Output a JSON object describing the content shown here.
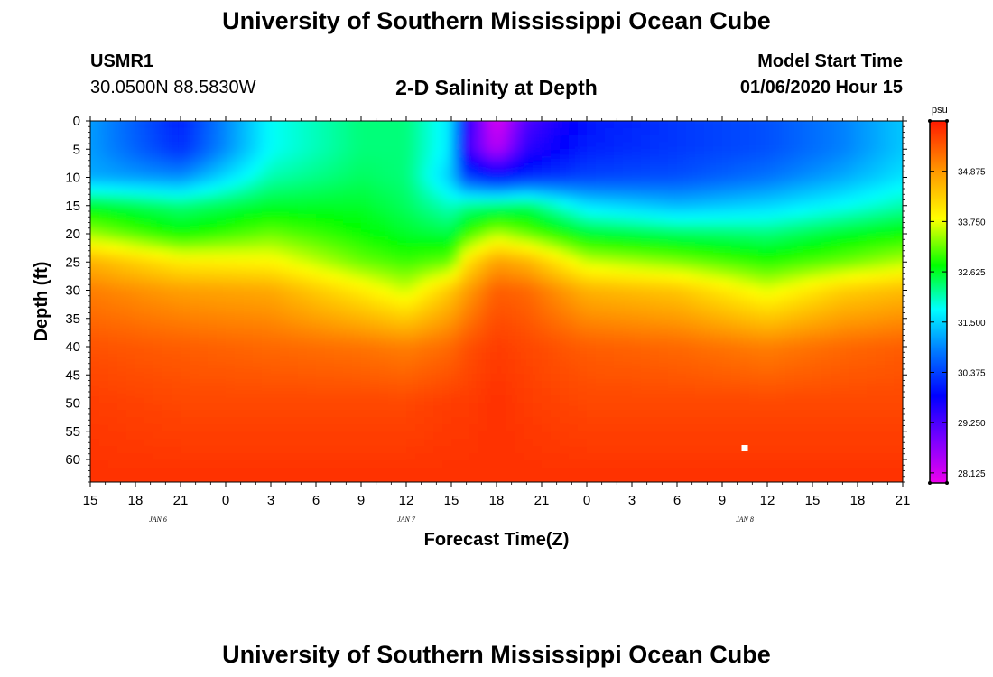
{
  "header": {
    "title": "University of Southern Mississippi Ocean Cube",
    "station_id": "USMR1",
    "station_coords": "30.0500N 88.5830W",
    "plot_title": "2-D Salinity at Depth",
    "model_start_label": "Model Start Time",
    "model_start_value": "01/06/2020 Hour 15"
  },
  "footer": {
    "title": "University of Southern Mississippi Ocean Cube"
  },
  "chart_data": {
    "type": "heatmap",
    "title": "2-D Salinity at Depth",
    "xlabel": "Forecast Time(Z)",
    "ylabel": "Depth (ft)",
    "x_tick_labels": [
      "15",
      "18",
      "21",
      "0",
      "3",
      "6",
      "9",
      "12",
      "15",
      "18",
      "21",
      "0",
      "3",
      "6",
      "9",
      "12",
      "15",
      "18",
      "21"
    ],
    "x_range_hours": [
      0,
      54
    ],
    "date_labels": [
      {
        "label": "JAN 6",
        "hour": 4.5
      },
      {
        "label": "JAN 7",
        "hour": 21
      },
      {
        "label": "JAN 8",
        "hour": 43.5
      }
    ],
    "y_ticks": [
      0,
      5,
      10,
      15,
      20,
      25,
      30,
      35,
      40,
      45,
      50,
      55,
      60
    ],
    "y_range": [
      0,
      64
    ],
    "colorbar": {
      "unit": "psu",
      "ticks": [
        "34.875",
        "33.750",
        "32.625",
        "31.500",
        "30.375",
        "29.250",
        "28.125"
      ],
      "min": 27.9,
      "max": 36.0
    },
    "depth_profiles": {
      "depths": [
        0,
        5,
        10,
        15,
        20,
        25,
        30,
        40,
        50,
        64
      ],
      "series": [
        {
          "hour": 0,
          "values": [
            31.1,
            31.1,
            31.2,
            32.6,
            33.4,
            34.6,
            35.1,
            35.5,
            35.7,
            35.8
          ]
        },
        {
          "hour": 6,
          "values": [
            30.1,
            30.2,
            31.0,
            32.3,
            32.8,
            34.0,
            34.8,
            35.4,
            35.6,
            35.8
          ]
        },
        {
          "hour": 12,
          "values": [
            31.8,
            31.8,
            32.1,
            32.6,
            33.2,
            33.9,
            34.7,
            35.3,
            35.6,
            35.8
          ]
        },
        {
          "hour": 18,
          "values": [
            32.3,
            32.3,
            32.4,
            32.6,
            32.8,
            33.2,
            34.0,
            35.2,
            35.6,
            35.8
          ]
        },
        {
          "hour": 21,
          "values": [
            32.3,
            32.3,
            32.3,
            32.4,
            32.6,
            33.0,
            33.6,
            35.1,
            35.6,
            35.8
          ]
        },
        {
          "hour": 24,
          "values": [
            31.6,
            31.6,
            31.4,
            32.0,
            32.5,
            33.2,
            34.4,
            35.3,
            35.7,
            35.8
          ]
        },
        {
          "hour": 25,
          "values": [
            29.6,
            29.4,
            30.4,
            32.2,
            33.0,
            34.1,
            34.8,
            35.5,
            35.7,
            35.8
          ]
        },
        {
          "hour": 27,
          "values": [
            28.0,
            28.3,
            30.0,
            32.3,
            33.5,
            34.8,
            35.4,
            35.7,
            35.8,
            35.8
          ]
        },
        {
          "hour": 29,
          "values": [
            29.2,
            29.5,
            30.2,
            32.4,
            33.2,
            34.6,
            35.3,
            35.6,
            35.7,
            35.8
          ]
        },
        {
          "hour": 33,
          "values": [
            30.0,
            30.1,
            30.4,
            31.6,
            32.6,
            33.6,
            34.6,
            35.4,
            35.6,
            35.8
          ]
        },
        {
          "hour": 39,
          "values": [
            30.3,
            30.3,
            30.5,
            31.3,
            32.4,
            33.3,
            34.4,
            35.3,
            35.6,
            35.8
          ]
        },
        {
          "hour": 45,
          "values": [
            30.5,
            30.5,
            30.8,
            31.5,
            32.3,
            32.9,
            33.7,
            35.1,
            35.6,
            35.8
          ]
        },
        {
          "hour": 50,
          "values": [
            30.9,
            30.9,
            31.2,
            31.8,
            32.6,
            33.2,
            34.3,
            35.3,
            35.6,
            35.8
          ]
        },
        {
          "hour": 54,
          "values": [
            31.4,
            31.4,
            31.6,
            32.1,
            32.8,
            33.5,
            34.5,
            35.4,
            35.6,
            35.8
          ]
        }
      ]
    },
    "marker": {
      "hour": 43.5,
      "depth": 58
    }
  }
}
